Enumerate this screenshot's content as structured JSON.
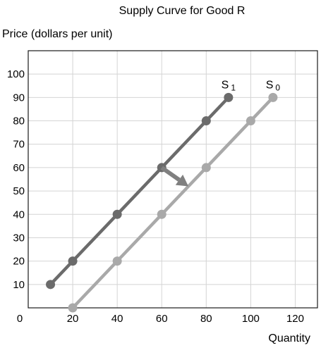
{
  "chart_data": {
    "type": "line",
    "title": "Supply Curve for Good R",
    "ylabel": "Price (dollars per unit)",
    "xlabel": "Quantity",
    "xlim": [
      0,
      130
    ],
    "ylim": [
      0,
      110
    ],
    "xticks": [
      "0",
      "20",
      "40",
      "60",
      "80",
      "100",
      "120"
    ],
    "yticks": [
      "10",
      "20",
      "30",
      "40",
      "50",
      "60",
      "70",
      "80",
      "90",
      "100"
    ],
    "grid": true,
    "series": [
      {
        "name": "S1",
        "label_main": "S",
        "label_sub": "1",
        "color": "#6b6b6b",
        "x": [
          10,
          20,
          40,
          60,
          80,
          90
        ],
        "y": [
          10,
          20,
          40,
          60,
          80,
          90
        ]
      },
      {
        "name": "S0",
        "label_main": "S",
        "label_sub": "0",
        "color": "#a9a9a9",
        "x": [
          20,
          40,
          60,
          80,
          100,
          110
        ],
        "y": [
          0,
          20,
          40,
          60,
          80,
          90
        ]
      }
    ],
    "arrow": {
      "from": [
        60,
        60
      ],
      "to": [
        72,
        52
      ],
      "color": "#808080"
    }
  }
}
